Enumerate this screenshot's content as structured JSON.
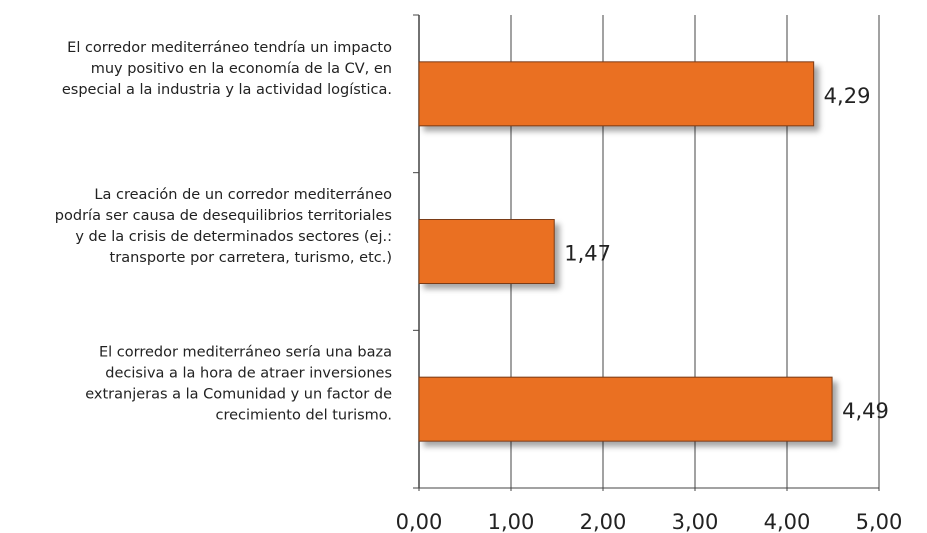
{
  "chart_data": {
    "type": "bar",
    "orientation": "horizontal",
    "categories": [
      [
        "El corredor mediterráneo tendría un impacto",
        "muy positivo en la economía de la CV, en",
        "especial a la industria y la actividad logística."
      ],
      [
        "La creación de un corredor mediterráneo",
        "podría ser causa de desequilibrios territoriales",
        "y de la crisis de determinados sectores (ej.:",
        "transporte por carretera, turismo, etc.)"
      ],
      [
        "El corredor mediterráneo sería una baza",
        "decisiva a la hora de atraer inversiones",
        "extranjeras a la Comunidad y un factor de",
        "crecimiento del turismo."
      ]
    ],
    "values": [
      4.29,
      1.47,
      4.49
    ],
    "value_labels": [
      "4,29",
      "1,47",
      "4,49"
    ],
    "color": "#ea6f22",
    "xlim": [
      0,
      5
    ],
    "xticks": [
      {
        "value": 0,
        "label": "0,00"
      },
      {
        "value": 1,
        "label": "1,00"
      },
      {
        "value": 2,
        "label": "2,00"
      },
      {
        "value": 3,
        "label": "3,00"
      },
      {
        "value": 4,
        "label": "4,00"
      },
      {
        "value": 5,
        "label": "5,00"
      }
    ],
    "grid": true
  }
}
